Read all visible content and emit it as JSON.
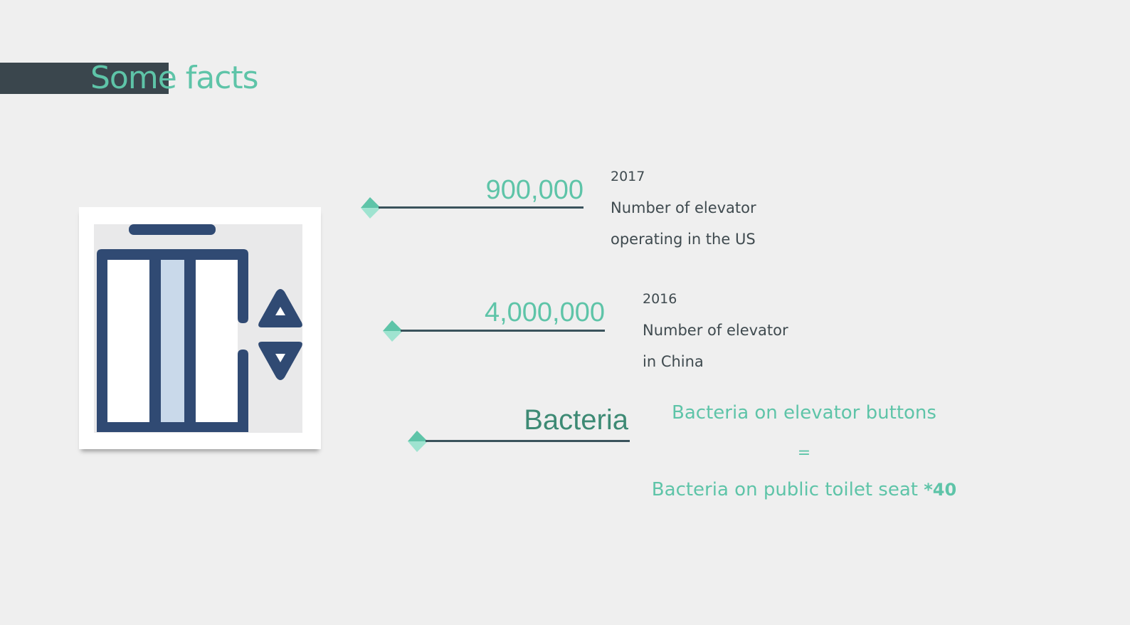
{
  "header": {
    "title": "Some facts"
  },
  "facts": [
    {
      "number": "900,000",
      "year": "2017",
      "line1": "Number of elevator",
      "line2": "operating in the US"
    },
    {
      "number": "4,000,000",
      "year": "2016",
      "line1": "Number of elevator",
      "line2": "in China"
    }
  ],
  "bacteria": {
    "label": "Bacteria",
    "line1": "Bacteria on elevator buttons",
    "equals": "=",
    "line2": "Bacteria on public toilet seat ",
    "multiplier": "*40"
  },
  "colors": {
    "accent": "#5ec4a8",
    "accent_dark": "#3d8a74",
    "bar": "#3a464d",
    "icon": "#304a73",
    "text": "#3f4a4f"
  },
  "icons": {
    "elevator": "elevator-icon",
    "up": "arrow-up-icon",
    "down": "arrow-down-icon"
  }
}
